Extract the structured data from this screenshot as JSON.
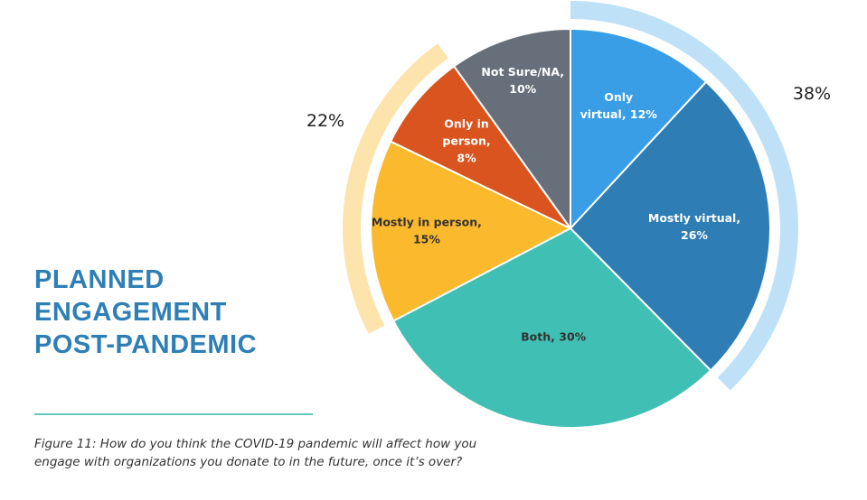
{
  "header": {
    "title_lines": [
      "PLANNED",
      "ENGAGEMENT",
      "POST-PANDEMIC"
    ]
  },
  "caption": "Figure 11: How do you think the COVID-19 pandemic will affect how you engage with organizations you donate to in the future, once it’s over?",
  "chart_data": {
    "type": "pie",
    "start_angle_deg": 0,
    "direction": "clockwise",
    "slices": [
      {
        "label": "Only virtual",
        "display_lines": [
          "Only",
          "virtual, 12%"
        ],
        "value": 12,
        "color": "#3a9ee6",
        "text_color": "#ffffff"
      },
      {
        "label": "Mostly virtual",
        "display_lines": [
          "Mostly virtual,",
          "26%"
        ],
        "value": 26,
        "color": "#2e7db5",
        "text_color": "#ffffff"
      },
      {
        "label": "Both",
        "display_lines": [
          "Both, 30%"
        ],
        "value": 30,
        "color": "#40bfb4",
        "text_color": "#333333"
      },
      {
        "label": "Mostly in person",
        "display_lines": [
          "Mostly in person,",
          "15%"
        ],
        "value": 15,
        "color": "#fbb92d",
        "text_color": "#333333"
      },
      {
        "label": "Only in person",
        "display_lines": [
          "Only in",
          "person,",
          "8%"
        ],
        "value": 8,
        "color": "#d9541e",
        "text_color": "#ffffff"
      },
      {
        "label": "Not Sure/NA",
        "display_lines": [
          "Not Sure/NA,",
          "10%"
        ],
        "value": 10,
        "color": "#666f7a",
        "text_color": "#ffffff"
      }
    ],
    "group_arcs": [
      {
        "label": "38%",
        "value": 38,
        "from_slice": 0,
        "to_slice": 1,
        "color": "#bee1f8"
      },
      {
        "label": "22%",
        "value": 22,
        "from_slice": 3,
        "to_slice": 4,
        "color": "#fde3ac"
      }
    ]
  }
}
